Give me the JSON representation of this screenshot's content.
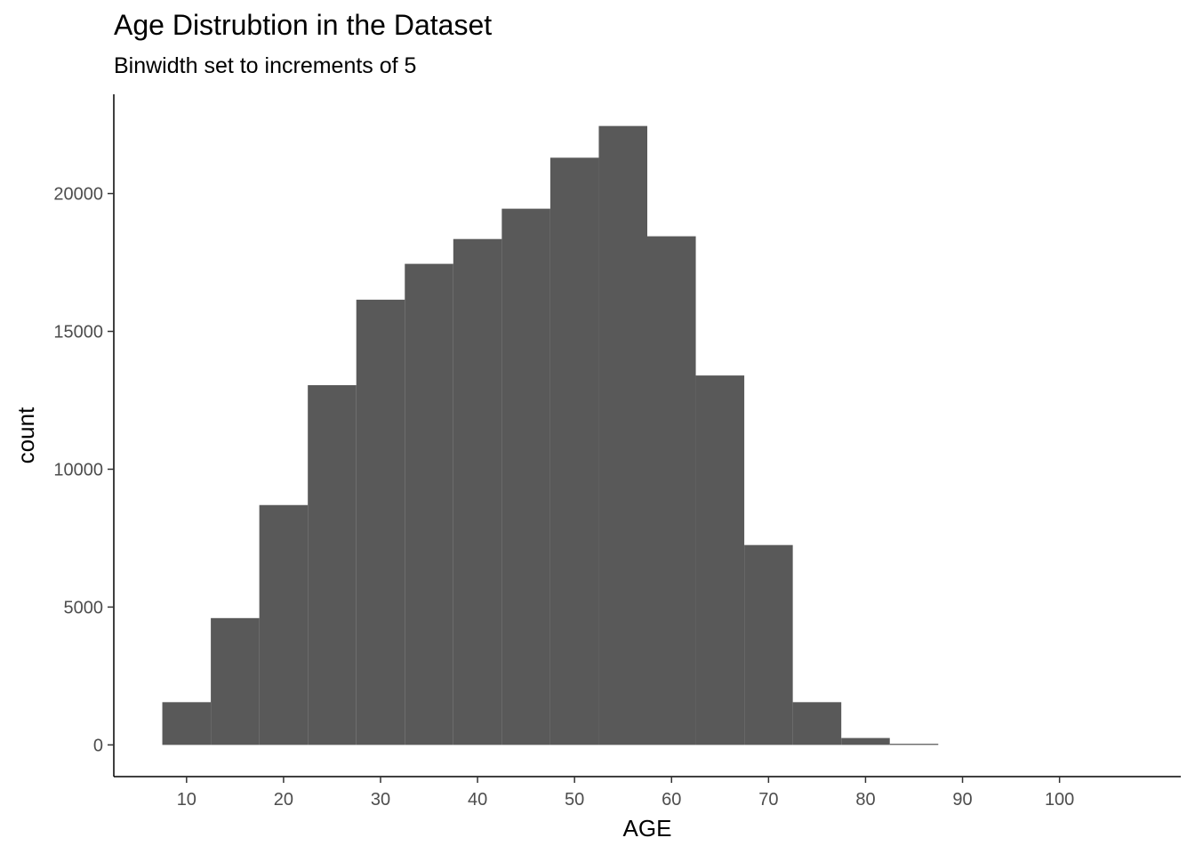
{
  "chart_data": {
    "type": "bar",
    "title": "Age Distrubtion in the Dataset",
    "subtitle": "Binwidth set to increments of 5",
    "xlabel": "AGE",
    "ylabel": "count",
    "bin_width": 5,
    "bins": [
      {
        "start": 7.5,
        "end": 12.5,
        "count": 1550
      },
      {
        "start": 12.5,
        "end": 17.5,
        "count": 4600
      },
      {
        "start": 17.5,
        "end": 22.5,
        "count": 8700
      },
      {
        "start": 22.5,
        "end": 27.5,
        "count": 13050
      },
      {
        "start": 27.5,
        "end": 32.5,
        "count": 16150
      },
      {
        "start": 32.5,
        "end": 37.5,
        "count": 17450
      },
      {
        "start": 37.5,
        "end": 42.5,
        "count": 18350
      },
      {
        "start": 42.5,
        "end": 47.5,
        "count": 19450
      },
      {
        "start": 47.5,
        "end": 52.5,
        "count": 21300
      },
      {
        "start": 52.5,
        "end": 57.5,
        "count": 22450
      },
      {
        "start": 57.5,
        "end": 62.5,
        "count": 18450
      },
      {
        "start": 62.5,
        "end": 67.5,
        "count": 13400
      },
      {
        "start": 67.5,
        "end": 72.5,
        "count": 7250
      },
      {
        "start": 72.5,
        "end": 77.5,
        "count": 1550
      },
      {
        "start": 77.5,
        "end": 82.5,
        "count": 250
      },
      {
        "start": 82.5,
        "end": 87.5,
        "count": 40
      }
    ],
    "xlim": [
      2.5,
      112.5
    ],
    "ylim": [
      -1150,
      23600
    ],
    "x_ticks": [
      10,
      20,
      30,
      40,
      50,
      60,
      70,
      80,
      90,
      100
    ],
    "y_ticks": [
      0,
      5000,
      10000,
      15000,
      20000
    ],
    "bar_color": "#595959",
    "grid": false,
    "legend": "none"
  }
}
